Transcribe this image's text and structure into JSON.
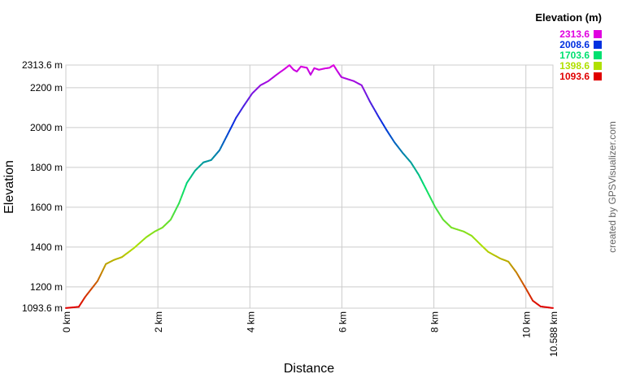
{
  "chart_data": {
    "type": "line",
    "xlabel": "Distance",
    "ylabel": "Elevation",
    "xlim": [
      0,
      10.588
    ],
    "ylim": [
      1093.6,
      2313.6
    ],
    "x_unit": "km",
    "y_unit": "m",
    "x_ticks": [
      0,
      2,
      4,
      6,
      8,
      10,
      10.588
    ],
    "x_tick_labels": [
      "0 km",
      "2 km",
      "4 km",
      "6 km",
      "8 km",
      "10 km",
      "10.588 km"
    ],
    "y_ticks": [
      1093.6,
      1200,
      1400,
      1600,
      1800,
      2000,
      2200,
      2313.6
    ],
    "y_tick_labels": [
      "1093.6 m",
      "1200 m",
      "1400 m",
      "1600 m",
      "1800 m",
      "2000 m",
      "2200 m",
      "2313.6 m"
    ],
    "grid": true,
    "legend": {
      "title": "Elevation (m)",
      "placement": "top-right",
      "entries": [
        {
          "label": "2313.6",
          "color": "#e000e0"
        },
        {
          "label": "2008.6",
          "color": "#0030e0"
        },
        {
          "label": "1703.6",
          "color": "#00e070"
        },
        {
          "label": "1398.6",
          "color": "#b0e000"
        },
        {
          "label": "1093.6",
          "color": "#e00000"
        }
      ]
    },
    "x": [
      0,
      0.28,
      0.42,
      0.69,
      0.87,
      1.04,
      1.22,
      1.48,
      1.75,
      1.93,
      2.1,
      2.28,
      2.46,
      2.63,
      2.81,
      2.99,
      3.16,
      3.34,
      3.52,
      3.7,
      3.87,
      4.05,
      4.23,
      4.4,
      4.58,
      4.76,
      4.86,
      4.95,
      5.02,
      5.11,
      5.24,
      5.32,
      5.4,
      5.5,
      5.64,
      5.73,
      5.82,
      5.91,
      5.99,
      6.26,
      6.43,
      6.61,
      6.79,
      6.97,
      7.14,
      7.32,
      7.5,
      7.67,
      7.85,
      8.03,
      8.2,
      8.38,
      8.65,
      8.82,
      9.0,
      9.18,
      9.44,
      9.62,
      9.79,
      9.97,
      10.15,
      10.32,
      10.588
    ],
    "y": [
      1094,
      1100,
      1150,
      1230,
      1315,
      1335,
      1350,
      1395,
      1450,
      1478,
      1498,
      1538,
      1620,
      1722,
      1784,
      1825,
      1837,
      1886,
      1967,
      2049,
      2110,
      2171,
      2212,
      2233,
      2265,
      2295,
      2313,
      2290,
      2281,
      2306,
      2300,
      2265,
      2298,
      2290,
      2297,
      2300,
      2313,
      2280,
      2253,
      2233,
      2212,
      2130,
      2057,
      1988,
      1927,
      1873,
      1825,
      1763,
      1682,
      1600,
      1538,
      1498,
      1478,
      1457,
      1416,
      1376,
      1343,
      1327,
      1274,
      1204,
      1131,
      1102,
      1094
    ],
    "credit": "created by GPSVisualizer.com"
  }
}
